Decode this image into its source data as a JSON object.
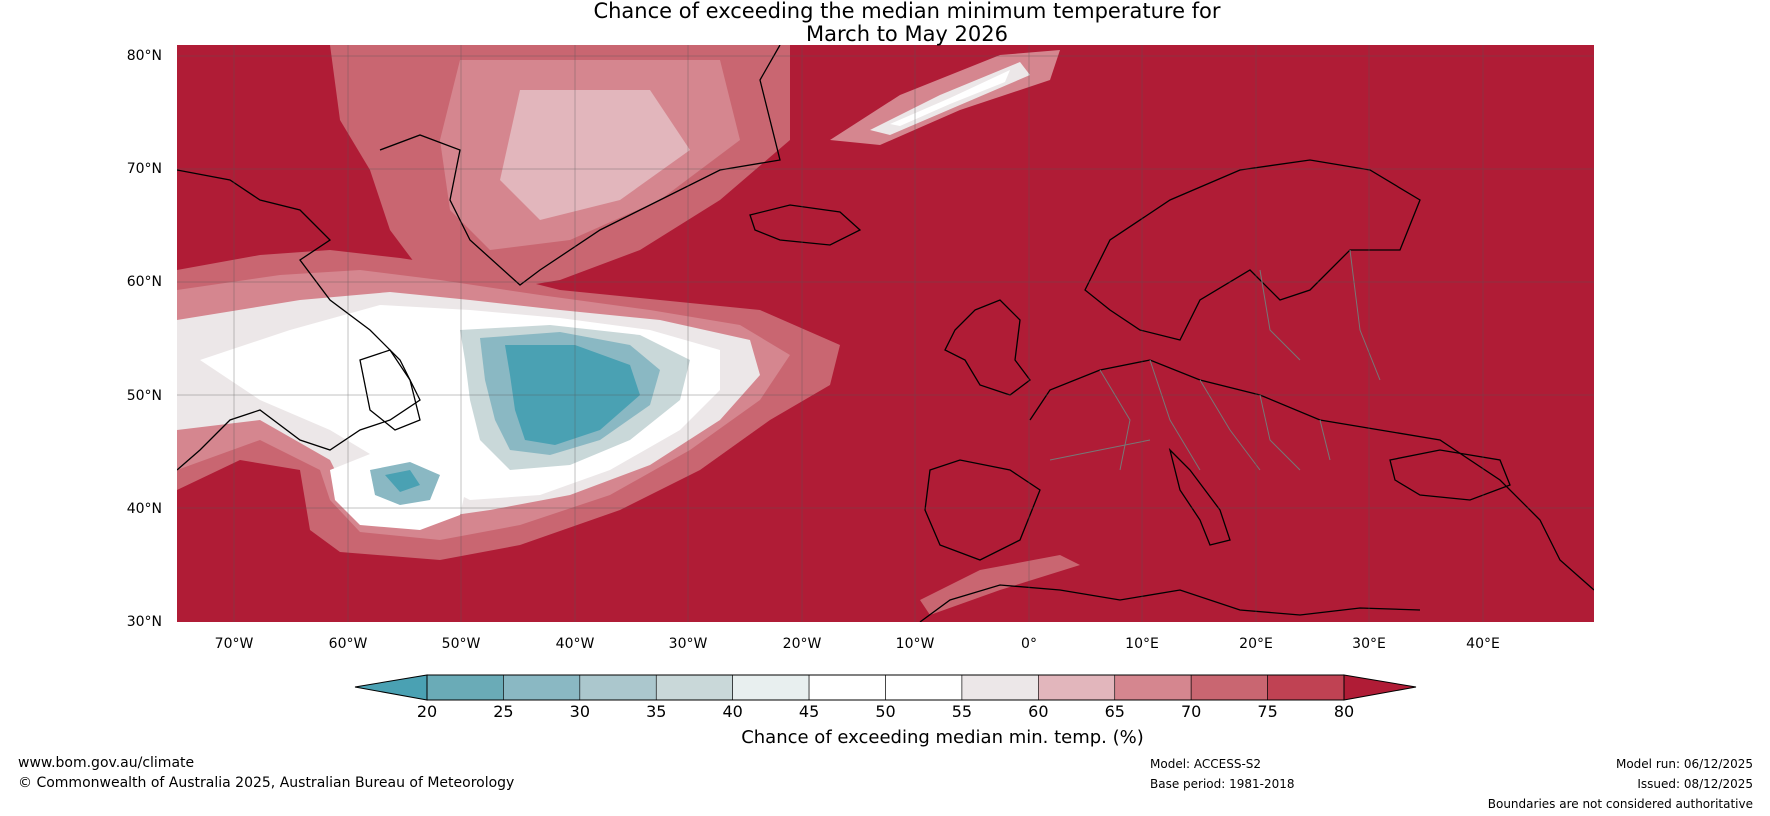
{
  "title": {
    "line1": "Chance of exceeding the median minimum temperature for",
    "line2": "March to May 2026"
  },
  "axes": {
    "lat_labels": [
      "80°N",
      "70°N",
      "60°N",
      "50°N",
      "40°N",
      "30°N"
    ],
    "lon_labels": [
      "70°W",
      "60°W",
      "50°W",
      "40°W",
      "30°W",
      "20°W",
      "10°W",
      "0°",
      "10°E",
      "20°E",
      "30°E",
      "40°E"
    ]
  },
  "colorbar": {
    "ticks": [
      "20",
      "25",
      "30",
      "35",
      "40",
      "45",
      "50",
      "55",
      "60",
      "65",
      "70",
      "75",
      "80"
    ],
    "colors": [
      "#4aa1b3",
      "#6aabb7",
      "#8ab8c3",
      "#abc7cd",
      "#c9d8d9",
      "#e8efef",
      "#ffffff",
      "#ffffff",
      "#ece7e8",
      "#e2b6bc",
      "#d5868f",
      "#c96671",
      "#c04253",
      "#b01c36"
    ],
    "label": "Chance of exceeding median min. temp. (%)"
  },
  "footer": {
    "website": "www.bom.gov.au/climate",
    "copyright": "© Commonwealth of Australia 2025, Australian Bureau of Meteorology",
    "model": "Model: ACCESS-S2",
    "base_period": "Base period: 1981-2018",
    "model_run": "Model run: 06/12/2025",
    "issued": "Issued: 08/12/2025",
    "disclaimer": "Boundaries are not considered authoritative"
  },
  "map": {
    "region": "North Atlantic and Europe",
    "lon_range": [
      -75,
      50
    ],
    "lat_range": [
      30,
      81
    ],
    "background_category": "80+",
    "colors": {
      "deep_red": "#b01c36",
      "red": "#c04253",
      "mid_red": "#c96671",
      "pink": "#d5868f",
      "light_pink": "#e2b6bc",
      "near_white": "#ece7e8",
      "white": "#ffffff",
      "pale_blue": "#c9d8d9",
      "blue": "#8ab8c3",
      "teal": "#4aa1b3"
    }
  }
}
